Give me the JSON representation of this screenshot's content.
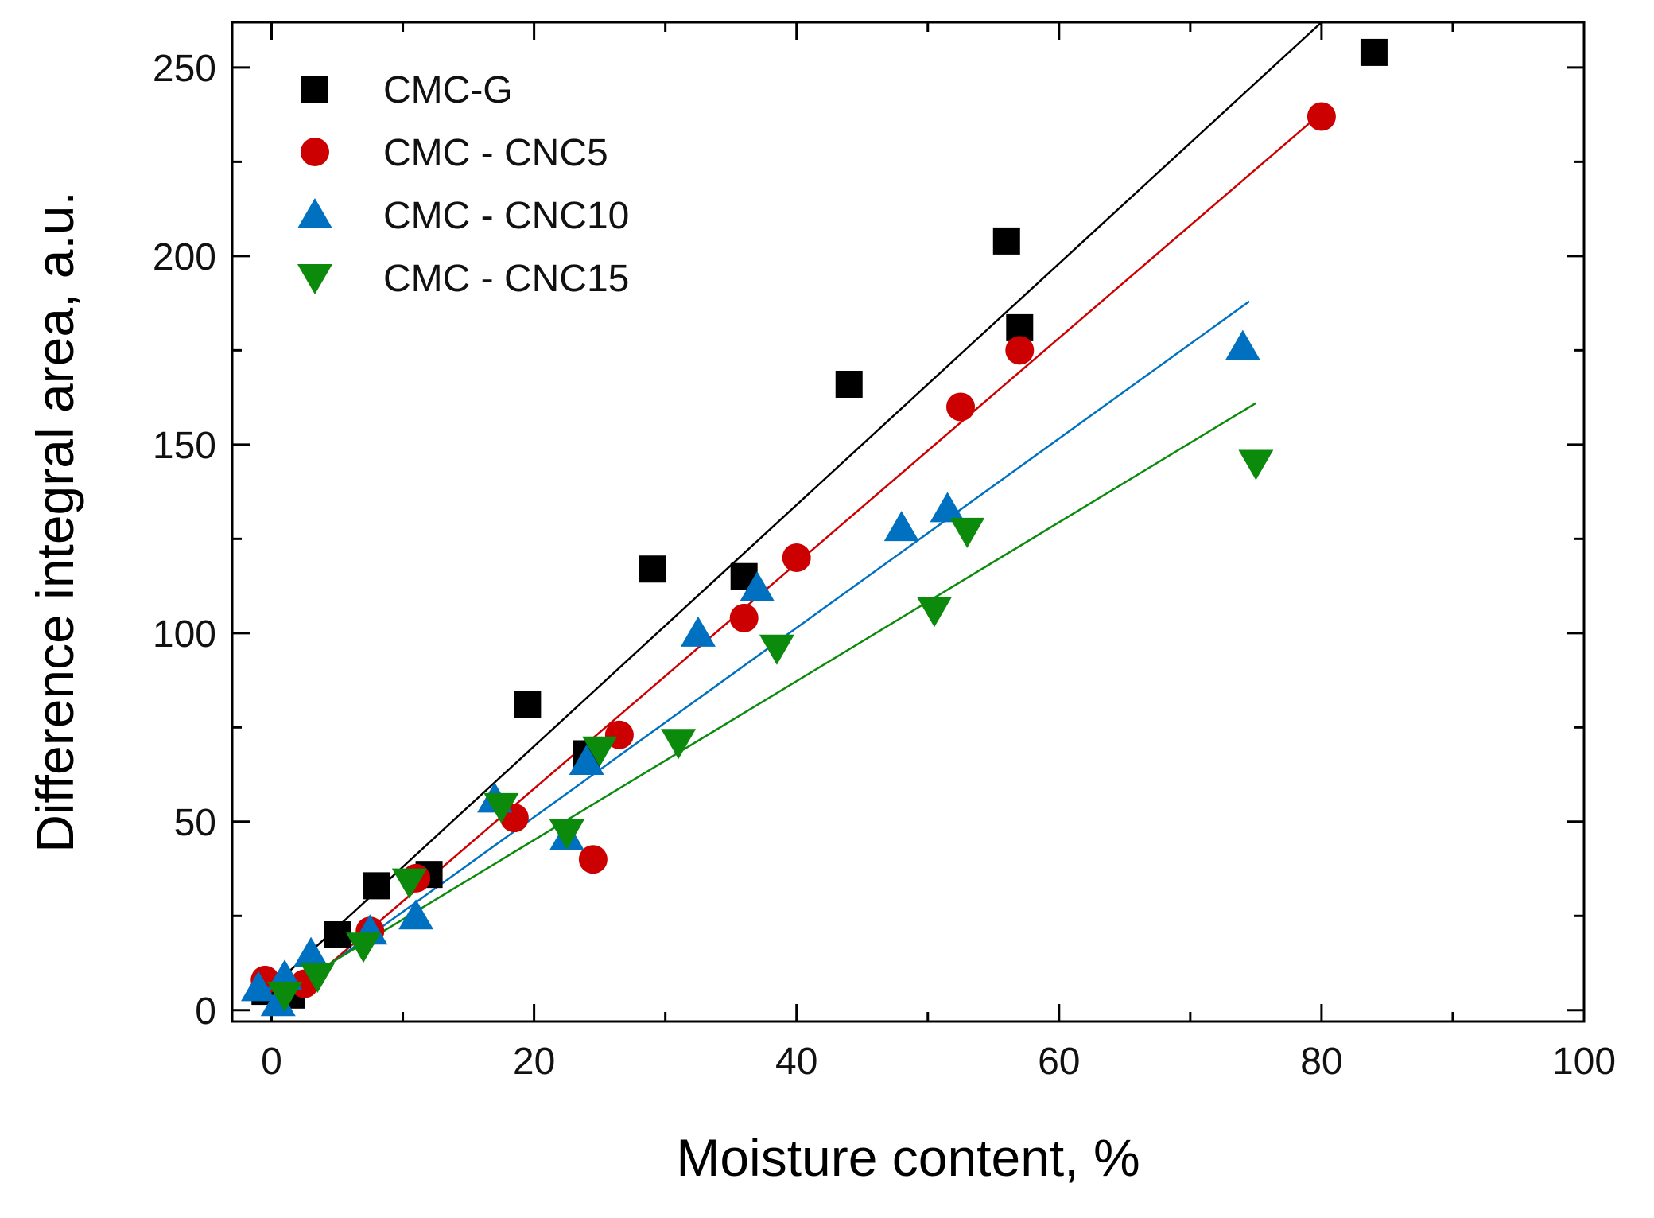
{
  "chart_data": {
    "type": "scatter",
    "title": "",
    "xlabel": "Moisture content, %",
    "ylabel": "Difference integral area, a.u.",
    "xlim": [
      -3,
      100
    ],
    "ylim": [
      -3,
      262
    ],
    "xticks": [
      0,
      20,
      40,
      60,
      80,
      100
    ],
    "yticks": [
      0,
      50,
      100,
      150,
      200,
      250
    ],
    "x_minor_step": 10,
    "y_minor_step": 25,
    "legend_position": "top-left",
    "series": [
      {
        "name": "CMC-G",
        "marker": "square",
        "color": "#000000",
        "points": [
          [
            -0.5,
            5
          ],
          [
            1.5,
            4
          ],
          [
            5,
            20
          ],
          [
            8,
            33
          ],
          [
            12,
            36
          ],
          [
            19.5,
            81
          ],
          [
            24,
            68
          ],
          [
            29,
            117
          ],
          [
            36,
            115
          ],
          [
            44,
            166
          ],
          [
            56,
            204
          ],
          [
            57,
            181
          ],
          [
            84,
            254
          ]
        ],
        "fit": {
          "x": [
            0,
            80
          ],
          "y": [
            6,
            262
          ]
        }
      },
      {
        "name": "CMC - CNC5",
        "marker": "circle",
        "color": "#cc0000",
        "points": [
          [
            -0.5,
            8
          ],
          [
            2.5,
            7
          ],
          [
            7.5,
            21
          ],
          [
            11,
            35
          ],
          [
            18.5,
            51
          ],
          [
            24.5,
            40
          ],
          [
            26.5,
            73
          ],
          [
            36,
            104
          ],
          [
            40,
            120
          ],
          [
            52.5,
            160
          ],
          [
            57,
            175
          ],
          [
            80,
            237
          ]
        ],
        "fit": {
          "x": [
            0,
            80
          ],
          "y": [
            -1,
            238
          ]
        }
      },
      {
        "name": "CMC - CNC10",
        "marker": "triangle-up",
        "color": "#0070c0",
        "points": [
          [
            -1,
            6
          ],
          [
            0.5,
            2
          ],
          [
            1,
            9
          ],
          [
            3,
            15
          ],
          [
            7.5,
            21
          ],
          [
            11,
            25
          ],
          [
            17,
            56
          ],
          [
            22.5,
            46
          ],
          [
            24,
            66
          ],
          [
            32.5,
            100
          ],
          [
            37,
            112
          ],
          [
            48,
            128
          ],
          [
            51.5,
            133
          ],
          [
            74,
            176
          ]
        ],
        "fit": {
          "x": [
            0,
            74.5
          ],
          "y": [
            1,
            188
          ]
        }
      },
      {
        "name": "CMC - CNC15",
        "marker": "triangle-down",
        "color": "#0b8a0b",
        "points": [
          [
            1,
            4
          ],
          [
            3.5,
            9
          ],
          [
            7,
            17
          ],
          [
            10.5,
            34
          ],
          [
            17.5,
            54
          ],
          [
            22.5,
            47
          ],
          [
            25,
            69
          ],
          [
            31,
            71
          ],
          [
            38.5,
            96
          ],
          [
            50.5,
            106
          ],
          [
            53,
            127
          ],
          [
            75,
            145
          ]
        ],
        "fit": {
          "x": [
            0,
            75
          ],
          "y": [
            3,
            161
          ]
        }
      }
    ]
  }
}
